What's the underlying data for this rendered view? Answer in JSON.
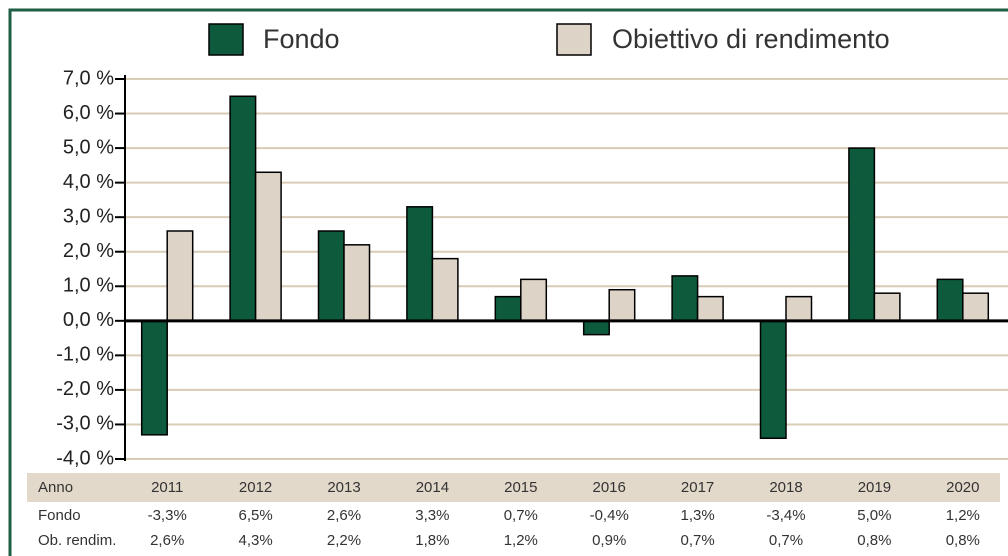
{
  "chart_data": {
    "type": "bar",
    "categories": [
      "2011",
      "2012",
      "2013",
      "2014",
      "2015",
      "2016",
      "2017",
      "2018",
      "2019",
      "2020"
    ],
    "series": [
      {
        "name": "Fondo",
        "color": "#0d5a3c",
        "values": [
          -3.3,
          6.5,
          2.6,
          3.3,
          0.7,
          -0.4,
          1.3,
          -3.4,
          5.0,
          1.2
        ],
        "value_labels": [
          "-3,3%",
          "6,5%",
          "2,6%",
          "3,3%",
          "0,7%",
          "-0,4%",
          "1,3%",
          "-3,4%",
          "5,0%",
          "1,2%"
        ]
      },
      {
        "name": "Obiettivo di rendimento",
        "color": "#ddd3c6",
        "values": [
          2.6,
          4.3,
          2.2,
          1.8,
          1.2,
          0.9,
          0.7,
          0.7,
          0.8,
          0.8
        ],
        "value_labels": [
          "2,6%",
          "4,3%",
          "2,2%",
          "1,8%",
          "1,2%",
          "0,9%",
          "0,7%",
          "0,7%",
          "0,8%",
          "0,8%"
        ]
      }
    ],
    "row_labels": [
      "Anno",
      "Fondo",
      "Ob. rendim."
    ],
    "ylim": [
      -4,
      7
    ],
    "yticks": [
      {
        "value": -4,
        "label": "-4,0 %"
      },
      {
        "value": -3,
        "label": "-3,0 %"
      },
      {
        "value": -2,
        "label": "-2,0 %"
      },
      {
        "value": -1,
        "label": "-1,0 %"
      },
      {
        "value": 0,
        "label": "0,0 %"
      },
      {
        "value": 1,
        "label": "1,0 %"
      },
      {
        "value": 2,
        "label": "2,0 %"
      },
      {
        "value": 3,
        "label": "3,0 %"
      },
      {
        "value": 4,
        "label": "4,0 %"
      },
      {
        "value": 5,
        "label": "5,0 %"
      },
      {
        "value": 6,
        "label": "6,0 %"
      },
      {
        "value": 7,
        "label": "7,0 %"
      }
    ],
    "grid": true
  }
}
